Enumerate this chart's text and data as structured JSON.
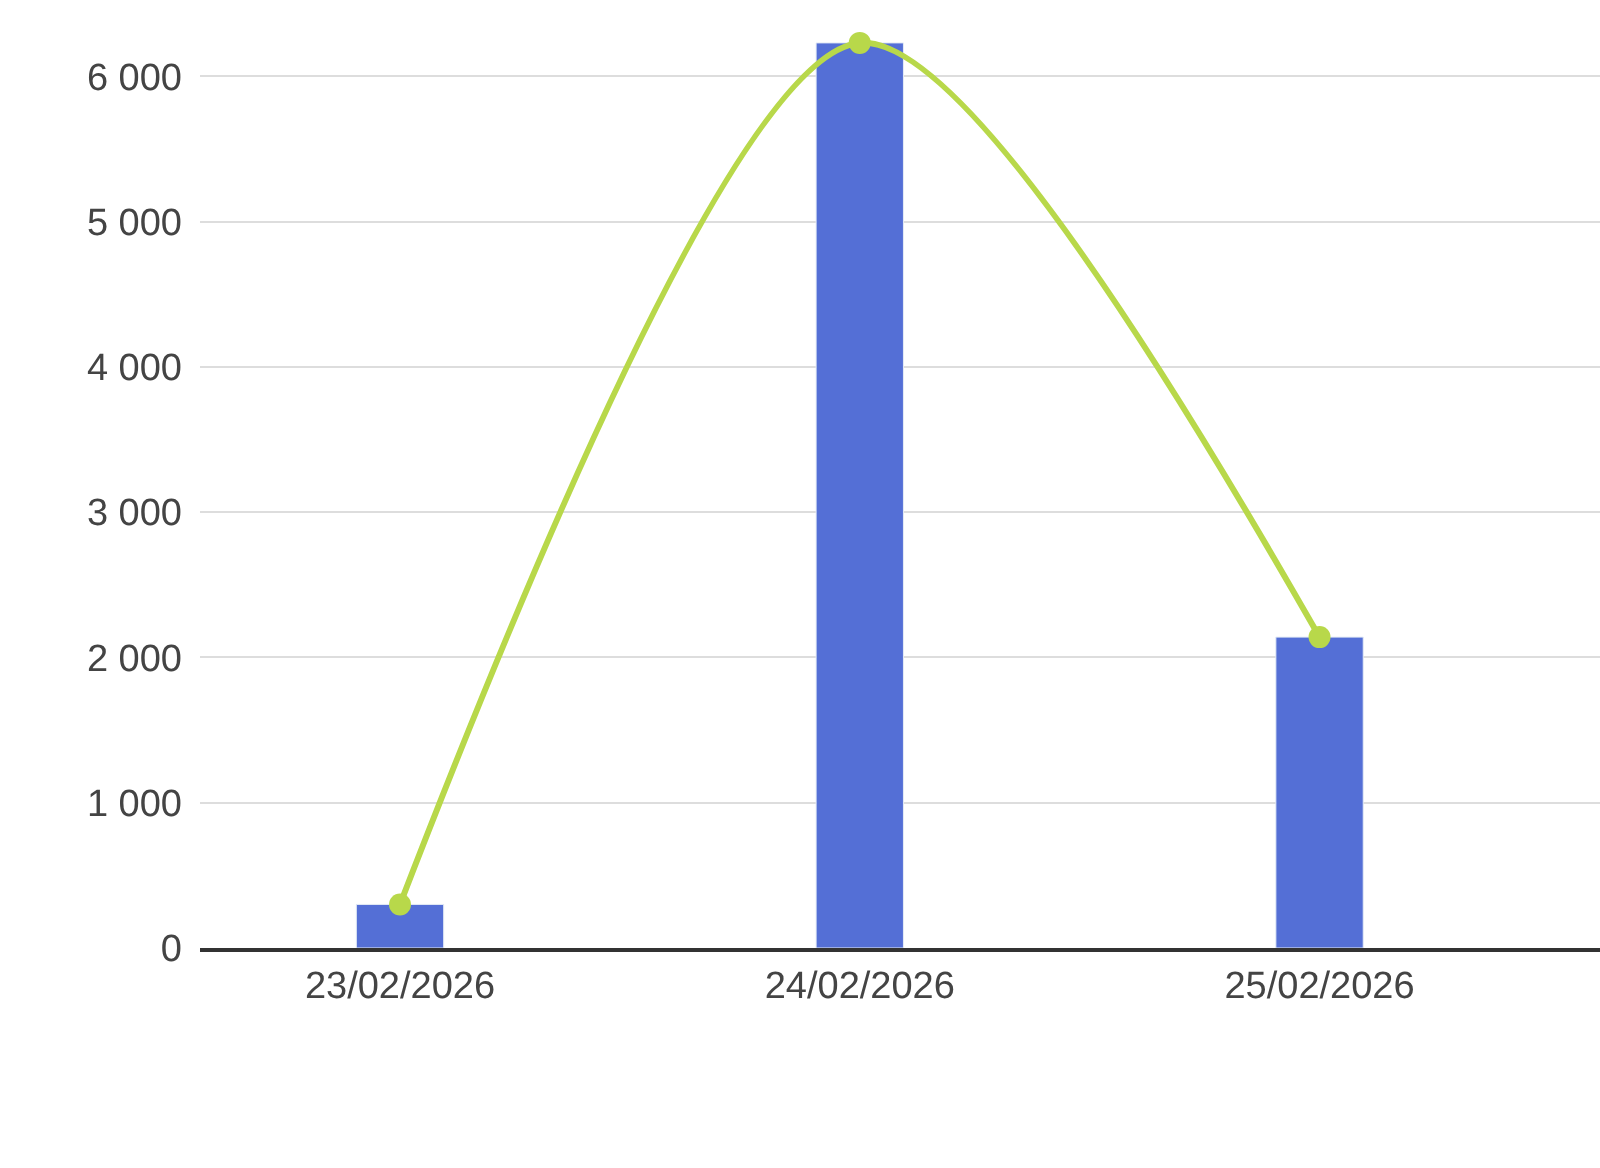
{
  "chart_data": {
    "type": "bar",
    "categories": [
      "23/02/2026",
      "24/02/2026",
      "25/02/2026"
    ],
    "series": [
      {
        "color": "#546fd6",
        "values": [
          300,
          6230,
          2140
        ]
      },
      {
        "type": "line",
        "color": "#b8d84a",
        "values": [
          300,
          6230,
          2140
        ]
      }
    ],
    "ylim": [
      0,
      6250
    ],
    "yticks": [
      {
        "value": 0,
        "label": "0"
      },
      {
        "value": 1000,
        "label": "1 000"
      },
      {
        "value": 2000,
        "label": "2 000"
      },
      {
        "value": 3000,
        "label": "3 000"
      },
      {
        "value": 4000,
        "label": "4 000"
      },
      {
        "value": 5000,
        "label": "5 000"
      },
      {
        "value": 6000,
        "label": "6 000"
      }
    ],
    "grid": "y",
    "marker": "circle",
    "line_style": "solid"
  }
}
